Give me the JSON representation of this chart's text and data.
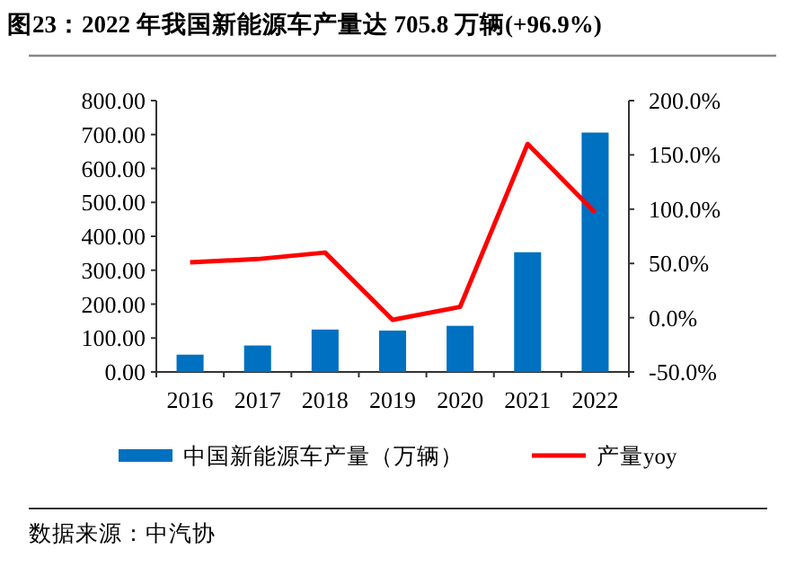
{
  "chart_data": {
    "type": "bar",
    "title": "图23：2022 年我国新能源车产量达 705.8 万辆(+96.9%)",
    "categories": [
      "2016",
      "2017",
      "2018",
      "2019",
      "2020",
      "2021",
      "2022"
    ],
    "series": [
      {
        "name": "中国新能源车产量（万辆）",
        "color": "#0070c0",
        "values": [
          51,
          78,
          125,
          122,
          136,
          353,
          705.8
        ]
      },
      {
        "name": "产量yoy",
        "type": "line",
        "axis": "y2",
        "color": "#ff0000",
        "values": [
          51,
          54,
          60,
          -2,
          10,
          160,
          96.9
        ]
      }
    ],
    "ylim": [
      0,
      800
    ],
    "yticks": [
      {
        "value": 0,
        "label": "0.00"
      },
      {
        "value": 100,
        "label": "100.00"
      },
      {
        "value": 200,
        "label": "200.00"
      },
      {
        "value": 300,
        "label": "300.00"
      },
      {
        "value": 400,
        "label": "400.00"
      },
      {
        "value": 500,
        "label": "500.00"
      },
      {
        "value": 600,
        "label": "600.00"
      },
      {
        "value": 700,
        "label": "700.00"
      },
      {
        "value": 800,
        "label": "800.00"
      }
    ],
    "y2lim": [
      -50,
      200
    ],
    "y2ticks": [
      {
        "value": -50,
        "label": "-50.0%"
      },
      {
        "value": 0,
        "label": "0.0%"
      },
      {
        "value": 50,
        "label": "50.0%"
      },
      {
        "value": 100,
        "label": "100.0%"
      },
      {
        "value": 150,
        "label": "150.0%"
      },
      {
        "value": 200,
        "label": "200.0%"
      }
    ],
    "legend": "bottom",
    "annotations": [
      "数据来源：中汽协"
    ]
  }
}
